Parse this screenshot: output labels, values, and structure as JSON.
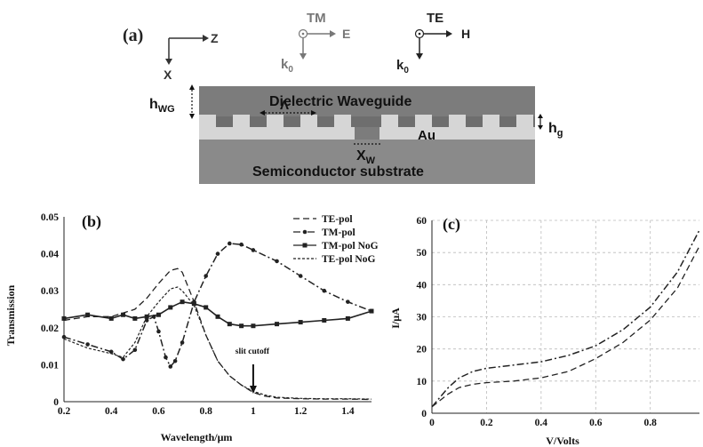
{
  "panel_a": {
    "label": "(a)",
    "axis_z": "Z",
    "axis_x": "X",
    "tm_title": "TM",
    "tm_field": "E",
    "tm_k": "k",
    "tm_k_sub": "0",
    "te_title": "TE",
    "te_field": "H",
    "te_k": "k",
    "te_k_sub": "0",
    "h_wg": "h",
    "h_wg_sub": "WG",
    "lambda": "Λ",
    "waveguide_label": "Dielectric Waveguide",
    "au_label": "Au",
    "h_g": "h",
    "h_g_sub": "g",
    "x_w": "X",
    "x_w_sub": "W",
    "substrate_label": "Semiconductor substrate",
    "colors": {
      "waveguide": "#7c7c7c",
      "gold": "#d4d4d4",
      "substrate": "#8a8a8a"
    }
  },
  "chart_data": [
    {
      "panel": "(b)",
      "type": "line",
      "xlabel": "Wavelength/μm",
      "ylabel": "Transmission",
      "xlim": [
        0.2,
        1.5
      ],
      "ylim": [
        0,
        0.05
      ],
      "xticks": [
        "0.2",
        "0.4",
        "0.6",
        "0.8",
        "1",
        "1.2",
        "1.4"
      ],
      "yticks": [
        "0",
        "0.01",
        "0.02",
        "0.03",
        "0.04",
        "0.05"
      ],
      "annotation": "slit cutoff",
      "annotation_x": 1.0,
      "legend_position": "top-right",
      "series": [
        {
          "name": "TE-pol",
          "style": "dashed",
          "x": [
            0.2,
            0.3,
            0.4,
            0.45,
            0.5,
            0.55,
            0.6,
            0.65,
            0.68,
            0.7,
            0.75,
            0.8,
            0.85,
            0.9,
            0.95,
            1.0,
            1.05,
            1.1,
            1.2,
            1.3,
            1.4,
            1.5
          ],
          "y": [
            0.022,
            0.023,
            0.023,
            0.024,
            0.025,
            0.028,
            0.032,
            0.0355,
            0.036,
            0.035,
            0.027,
            0.018,
            0.011,
            0.007,
            0.0045,
            0.0025,
            0.0015,
            0.001,
            0.0008,
            0.0007,
            0.0007,
            0.0006
          ]
        },
        {
          "name": "TM-pol",
          "style": "dot-dash",
          "x": [
            0.2,
            0.3,
            0.4,
            0.45,
            0.5,
            0.55,
            0.58,
            0.6,
            0.63,
            0.65,
            0.67,
            0.7,
            0.75,
            0.8,
            0.85,
            0.9,
            0.95,
            1.0,
            1.1,
            1.2,
            1.3,
            1.4,
            1.5
          ],
          "y": [
            0.0175,
            0.0155,
            0.0135,
            0.0115,
            0.014,
            0.022,
            0.023,
            0.019,
            0.012,
            0.0095,
            0.011,
            0.016,
            0.027,
            0.034,
            0.04,
            0.0428,
            0.0425,
            0.041,
            0.038,
            0.034,
            0.03,
            0.027,
            0.0245
          ]
        },
        {
          "name": "TM-pol NoG",
          "style": "solid-square",
          "x": [
            0.2,
            0.3,
            0.4,
            0.45,
            0.5,
            0.55,
            0.6,
            0.65,
            0.7,
            0.75,
            0.8,
            0.85,
            0.9,
            0.95,
            1.0,
            1.1,
            1.2,
            1.3,
            1.4,
            1.5
          ],
          "y": [
            0.0225,
            0.0235,
            0.0225,
            0.0235,
            0.0225,
            0.023,
            0.0235,
            0.0255,
            0.027,
            0.0265,
            0.0255,
            0.023,
            0.021,
            0.0205,
            0.0205,
            0.021,
            0.0215,
            0.022,
            0.0225,
            0.0245
          ]
        },
        {
          "name": "TE-pol NoG",
          "style": "fine-dash",
          "x": [
            0.2,
            0.3,
            0.4,
            0.45,
            0.5,
            0.55,
            0.6,
            0.65,
            0.68,
            0.7,
            0.75,
            0.8,
            0.85,
            0.9,
            0.95,
            1.0,
            1.05,
            1.1,
            1.2,
            1.3,
            1.4,
            1.5
          ],
          "y": [
            0.017,
            0.0145,
            0.013,
            0.012,
            0.016,
            0.023,
            0.027,
            0.0305,
            0.031,
            0.03,
            0.026,
            0.018,
            0.011,
            0.007,
            0.0045,
            0.0028,
            0.0018,
            0.0012,
            0.0009,
            0.0008,
            0.0008,
            0.0007
          ]
        }
      ]
    },
    {
      "panel": "(c)",
      "type": "line",
      "xlabel": "V/Volts",
      "ylabel": "I/μA",
      "xlim": [
        0,
        0.98
      ],
      "ylim": [
        0,
        60
      ],
      "xticks": [
        "0",
        "0.2",
        "0.4",
        "0.6",
        "0.8"
      ],
      "yticks": [
        "0",
        "10",
        "20",
        "30",
        "40",
        "50",
        "60"
      ],
      "grid": true,
      "series": [
        {
          "style": "dot-dash",
          "x": [
            0,
            0.03,
            0.06,
            0.1,
            0.15,
            0.2,
            0.3,
            0.4,
            0.5,
            0.6,
            0.7,
            0.8,
            0.9,
            0.98
          ],
          "y": [
            2,
            5,
            8,
            11,
            13,
            14,
            15,
            16,
            18,
            21,
            26,
            33,
            44,
            57
          ]
        },
        {
          "style": "dashed",
          "x": [
            0,
            0.03,
            0.06,
            0.1,
            0.15,
            0.2,
            0.3,
            0.4,
            0.5,
            0.6,
            0.7,
            0.8,
            0.9,
            0.98
          ],
          "y": [
            2,
            4,
            6,
            8,
            9,
            9.5,
            10,
            11,
            13,
            17,
            22,
            29,
            39,
            52
          ]
        }
      ]
    }
  ]
}
